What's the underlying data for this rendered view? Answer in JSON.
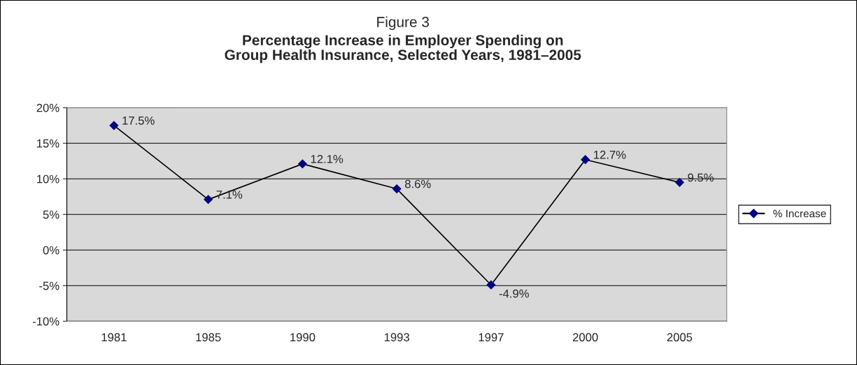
{
  "chart_data": {
    "type": "line",
    "title": "Figure 3",
    "subtitle": "Percentage Increase in Employer Spending on\nGroup Health Insurance, Selected Years, 1981–2005",
    "categories": [
      "1981",
      "1985",
      "1990",
      "1993",
      "1997",
      "2000",
      "2005"
    ],
    "series": [
      {
        "name": "% Increase",
        "color": "#000080",
        "values": [
          17.5,
          7.1,
          12.1,
          8.6,
          -4.9,
          12.7,
          9.5
        ],
        "value_labels": [
          "17.5%",
          "7.1%",
          "12.1%",
          "8.6%",
          "-4.9%",
          "12.7%",
          "9.5%"
        ]
      }
    ],
    "ylim": [
      -10,
      20
    ],
    "yticks": [
      {
        "value": -10,
        "label": "-10%"
      },
      {
        "value": -5,
        "label": "-5%"
      },
      {
        "value": 0,
        "label": "0%"
      },
      {
        "value": 5,
        "label": "5%"
      },
      {
        "value": 10,
        "label": "10%"
      },
      {
        "value": 15,
        "label": "15%"
      },
      {
        "value": 20,
        "label": "20%"
      }
    ],
    "grid": "y",
    "legend": "right",
    "marker": "diamond",
    "line_style": "solid"
  }
}
